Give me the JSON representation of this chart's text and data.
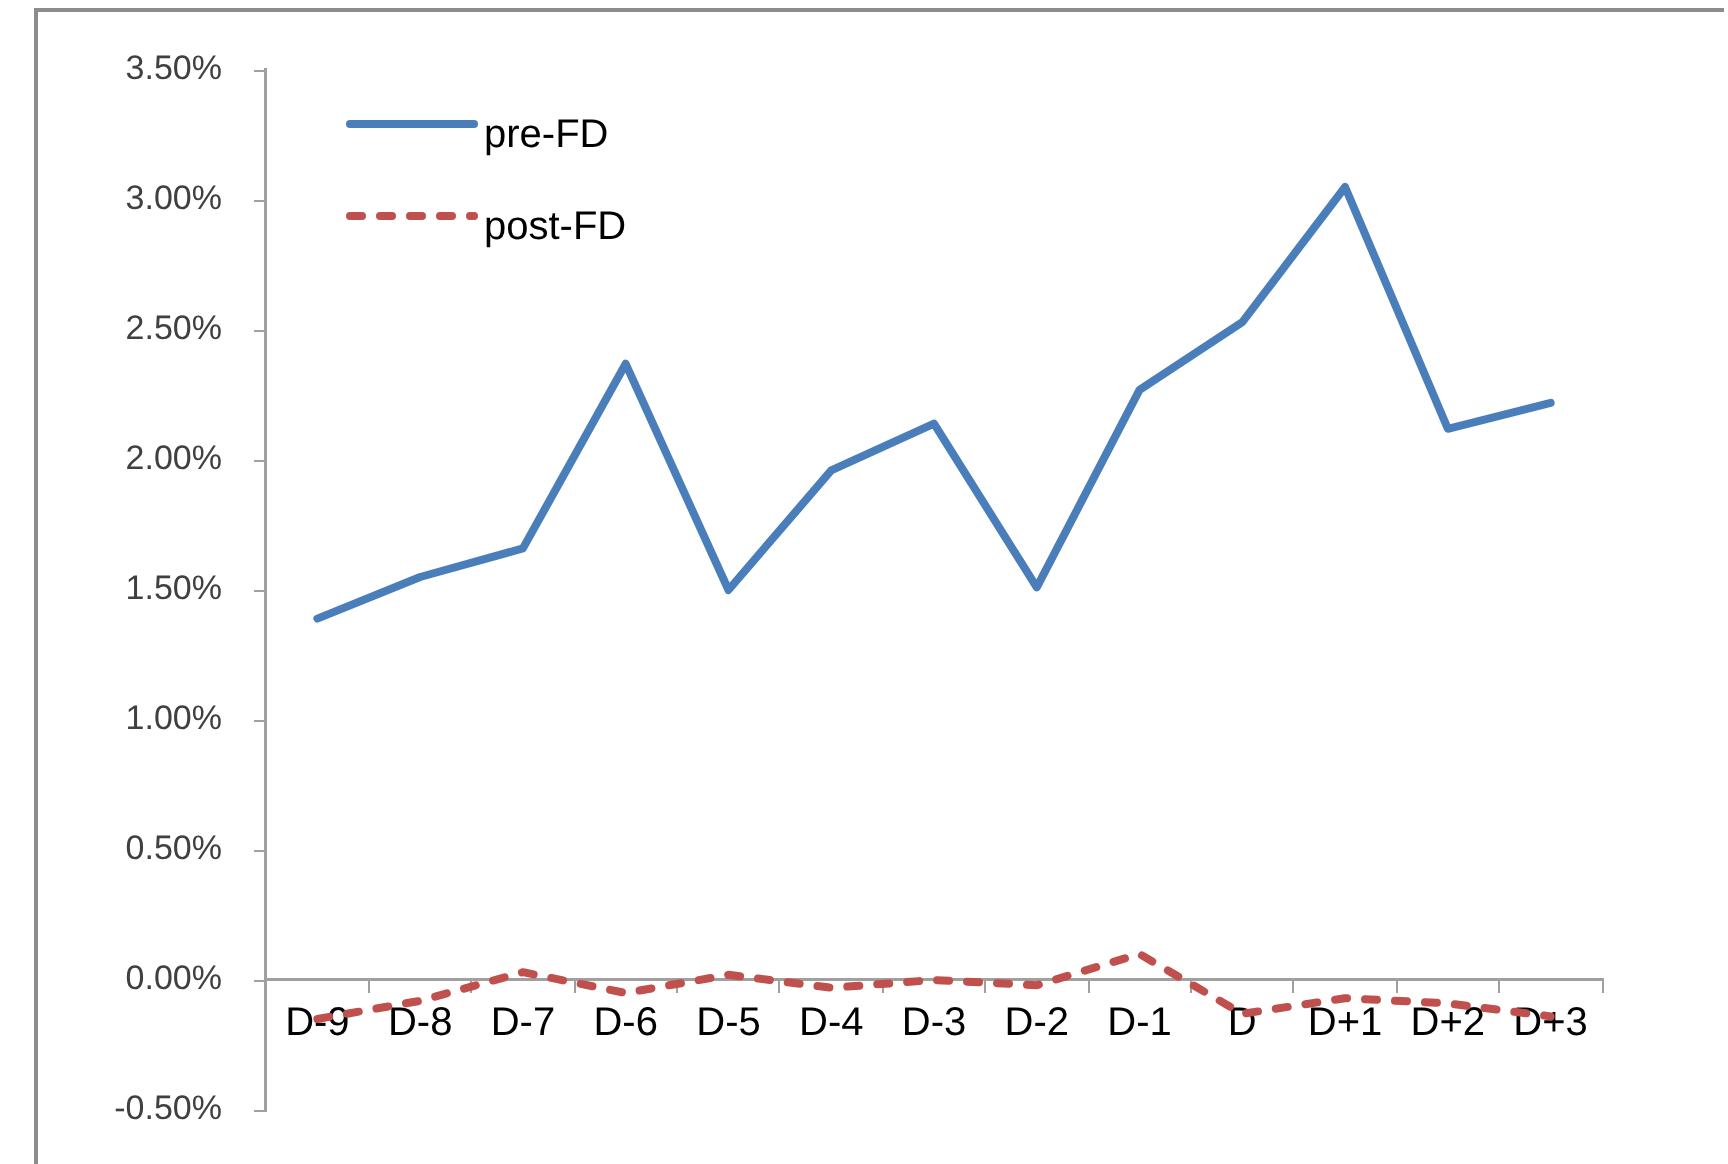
{
  "chart_data": {
    "type": "line",
    "categories": [
      "D-9",
      "D-8",
      "D-7",
      "D-6",
      "D-5",
      "D-4",
      "D-3",
      "D-2",
      "D-1",
      "D",
      "D+1",
      "D+2",
      "D+3"
    ],
    "series": [
      {
        "name": "pre-FD",
        "color": "#4a7ebb",
        "line_style": "solid",
        "values": [
          1.39,
          1.55,
          1.66,
          2.37,
          1.5,
          1.96,
          2.14,
          1.51,
          2.27,
          2.53,
          3.05,
          2.12,
          2.22
        ]
      },
      {
        "name": "post-FD",
        "color": "#c0504d",
        "line_style": "dashed",
        "values": [
          -0.15,
          -0.08,
          0.03,
          -0.05,
          0.02,
          -0.03,
          0.0,
          -0.02,
          0.1,
          -0.13,
          -0.07,
          -0.09,
          -0.14
        ]
      }
    ],
    "ylim": [
      -0.5,
      3.5
    ],
    "yticks": [
      {
        "value": -0.5,
        "label": "-0.50%"
      },
      {
        "value": 0,
        "label": "0.00%"
      },
      {
        "value": 0.5,
        "label": "0.50%"
      },
      {
        "value": 1,
        "label": "1.00%"
      },
      {
        "value": 1.5,
        "label": "1.50%"
      },
      {
        "value": 2,
        "label": "2.00%"
      },
      {
        "value": 2.5,
        "label": "2.50%"
      },
      {
        "value": 3,
        "label": "3.00%"
      },
      {
        "value": 3.5,
        "label": "3.50%"
      }
    ],
    "grid": false,
    "legend": "top left",
    "marker": "none"
  }
}
